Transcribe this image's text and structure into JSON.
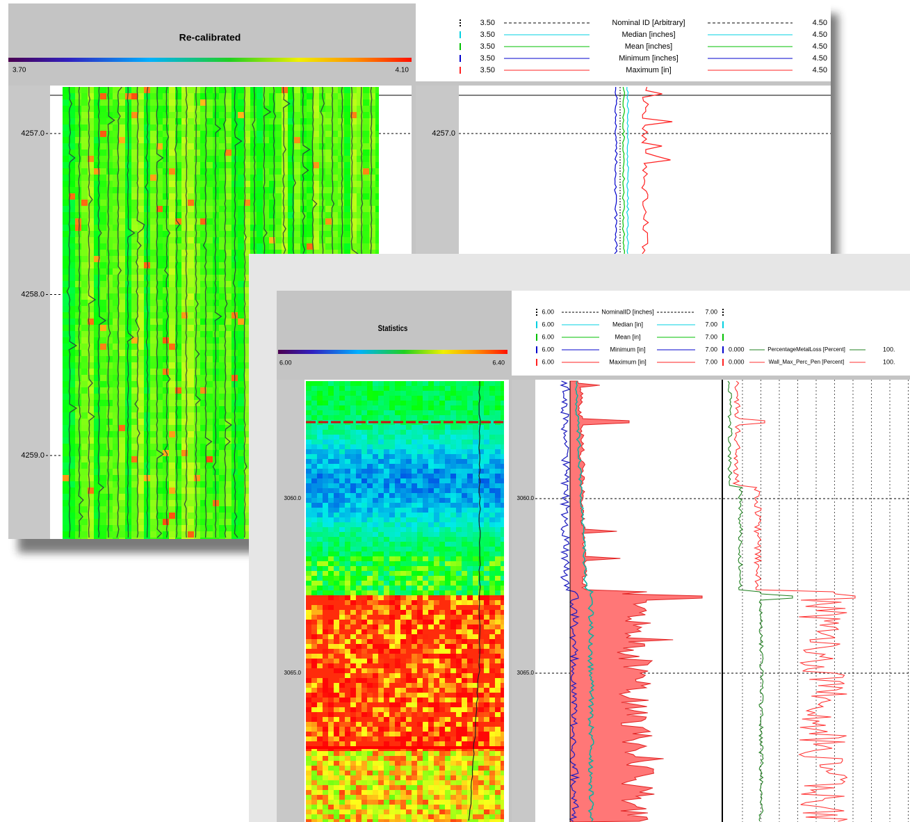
{
  "panels": [
    {
      "title": "Re-calibrated",
      "scale": {
        "min": "3.70",
        "max": "4.10"
      },
      "legend": [
        {
          "left": "3.50",
          "name": "Nominal ID [Arbitrary]",
          "right": "4.50",
          "color": "#000000"
        },
        {
          "left": "3.50",
          "name": "Median [inches]",
          "right": "4.50",
          "color": "#00d0e0"
        },
        {
          "left": "3.50",
          "name": "Mean [inches]",
          "right": "4.50",
          "color": "#00c000"
        },
        {
          "left": "3.50",
          "name": "Minimum [inches]",
          "right": "4.50",
          "color": "#0000cc"
        },
        {
          "left": "3.50",
          "name": "Maximum [in]",
          "right": "4.50",
          "color": "#ff2020"
        }
      ],
      "depths": [
        "4257.0",
        "4258.0",
        "4259.0"
      ]
    },
    {
      "title": "Statistics",
      "scale": {
        "min": "6.00",
        "max": "6.40"
      },
      "legend": [
        {
          "left": "6.00",
          "name": "NominalID [inches]",
          "right": "7.00",
          "color": "#000000"
        },
        {
          "left": "6.00",
          "name": "Median [in]",
          "right": "7.00",
          "color": "#00d0e0"
        },
        {
          "left": "6.00",
          "name": "Mean [in]",
          "right": "7.00",
          "color": "#00c000"
        },
        {
          "left": "6.00",
          "name": "Minimum [in]",
          "right": "7.00",
          "color": "#0000cc"
        },
        {
          "left": "6.00",
          "name": "Maximum [in]",
          "right": "7.00",
          "color": "#ff2020"
        }
      ],
      "legend2": [
        {
          "left": "0.000",
          "name": "PercentageMetalLoss [Percent]",
          "right": "100.",
          "color": "#208020"
        },
        {
          "left": "0.000",
          "name": "Wall_Max_Perc_Pen [Percent]",
          "right": "100.",
          "color": "#ff3030"
        }
      ],
      "depths": [
        "3060.0",
        "3065.0"
      ]
    }
  ]
}
